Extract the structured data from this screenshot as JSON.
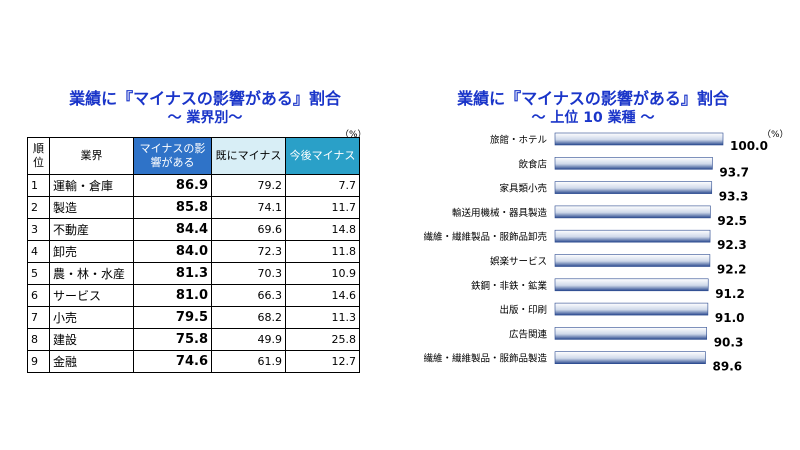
{
  "left": {
    "title_line1": "業績に『マイナスの影響がある』割合",
    "title_line2": "～ 業界別～",
    "unit": "（%）",
    "headers": {
      "rank": "順位",
      "industry": "業界",
      "impact": "マイナスの影響がある",
      "already": "既にマイナス",
      "future": "今後マイナス"
    },
    "rows": [
      {
        "rank": "1",
        "industry": "運輸・倉庫",
        "impact": "86.9",
        "already": "79.2",
        "future": "7.7"
      },
      {
        "rank": "2",
        "industry": "製造",
        "impact": "85.8",
        "already": "74.1",
        "future": "11.7"
      },
      {
        "rank": "3",
        "industry": "不動産",
        "impact": "84.4",
        "already": "69.6",
        "future": "14.8"
      },
      {
        "rank": "4",
        "industry": "卸売",
        "impact": "84.0",
        "already": "72.3",
        "future": "11.8"
      },
      {
        "rank": "5",
        "industry": "農・林・水産",
        "impact": "81.3",
        "already": "70.3",
        "future": "10.9"
      },
      {
        "rank": "6",
        "industry": "サービス",
        "impact": "81.0",
        "already": "66.3",
        "future": "14.6"
      },
      {
        "rank": "7",
        "industry": "小売",
        "impact": "79.5",
        "already": "68.2",
        "future": "11.3"
      },
      {
        "rank": "8",
        "industry": "建設",
        "impact": "75.8",
        "already": "49.9",
        "future": "25.8"
      },
      {
        "rank": "9",
        "industry": "金融",
        "impact": "74.6",
        "already": "61.9",
        "future": "12.7"
      }
    ]
  },
  "right": {
    "title_line1": "業績に『マイナスの影響がある』割合",
    "title_line2": "～ 上位 10 業種 ～",
    "unit": "（%）"
  },
  "colors": {
    "title": "#1a35c9",
    "bar_light": "#ffffff",
    "bar_dark": "#2b4a8f"
  },
  "chart_data": {
    "type": "bar",
    "orientation": "horizontal",
    "title": "業績に『マイナスの影響がある』割合",
    "subtitle": "～ 上位 10 業種 ～",
    "unit": "（%）",
    "xlim": [
      0,
      100
    ],
    "grid": false,
    "categories": [
      "旅館・ホテル",
      "飲食店",
      "家具類小売",
      "輸送用機械・器具製造",
      "繊維・繊維製品・服飾品卸売",
      "娯楽サービス",
      "鉄鋼・非鉄・鉱業",
      "出版・印刷",
      "広告関連",
      "繊維・繊維製品・服飾品製造"
    ],
    "values": [
      100.0,
      93.7,
      93.3,
      92.5,
      92.3,
      92.2,
      91.2,
      91.0,
      90.3,
      89.6
    ],
    "value_labels": [
      "100.0",
      "93.7",
      "93.3",
      "92.5",
      "92.3",
      "92.2",
      "91.2",
      "91.0",
      "90.3",
      "89.6"
    ]
  }
}
